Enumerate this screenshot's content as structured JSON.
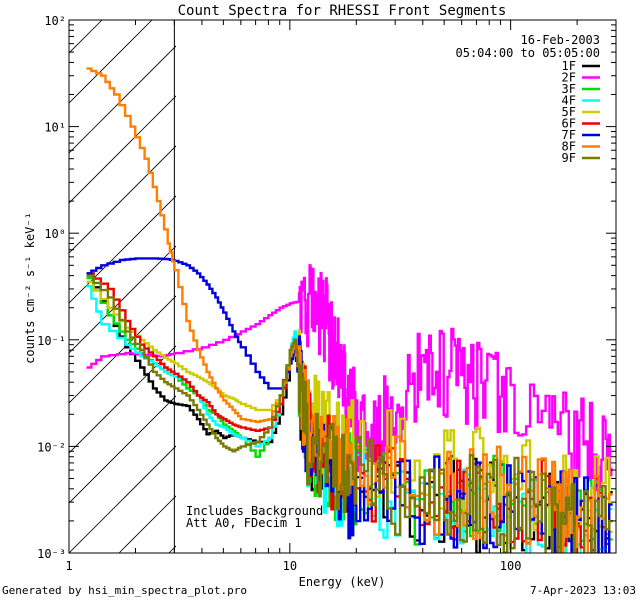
{
  "chart_data": {
    "type": "line",
    "title": "Count Spectra for RHESSI Front Segments",
    "xlabel": "Energy (keV)",
    "ylabel": "counts cm⁻² s⁻¹ keV⁻¹",
    "xscale": "log",
    "yscale": "log",
    "xlim": [
      1,
      300
    ],
    "ylim": [
      0.001,
      100
    ],
    "x_ticks": [
      {
        "value": 1,
        "label": "1"
      },
      {
        "value": 10,
        "label": "10"
      },
      {
        "value": 100,
        "label": "100"
      }
    ],
    "y_ticks": [
      {
        "value": 0.001,
        "label": "10⁻³"
      },
      {
        "value": 0.01,
        "label": "10⁻²"
      },
      {
        "value": 0.1,
        "label": "10⁻¹"
      },
      {
        "value": 1,
        "label": "10⁰"
      },
      {
        "value": 10,
        "label": "10¹"
      },
      {
        "value": 100,
        "label": "10²"
      }
    ],
    "date_label": "16-Feb-2003",
    "time_range_label": "05:04:00 to 05:05:00",
    "annotations": [
      "Includes Background",
      "Att A0, FDecim 1"
    ],
    "hatched_region_keV": [
      1,
      3
    ],
    "legend_position": "top-right",
    "series": [
      {
        "name": "1F",
        "color": "#000000",
        "points": [
          [
            1.2,
            0.42
          ],
          [
            1.5,
            0.17
          ],
          [
            1.8,
            0.085
          ],
          [
            2.1,
            0.055
          ],
          [
            2.4,
            0.035
          ],
          [
            2.7,
            0.027
          ],
          [
            3.0,
            0.025
          ],
          [
            3.4,
            0.024
          ],
          [
            3.8,
            0.018
          ],
          [
            4.2,
            0.013
          ],
          [
            4.6,
            0.014
          ],
          [
            5.0,
            0.012
          ],
          [
            5.5,
            0.013
          ],
          [
            6.0,
            0.012
          ],
          [
            7.0,
            0.011
          ],
          [
            8.0,
            0.011
          ],
          [
            9.0,
            0.02
          ],
          [
            10.0,
            0.06
          ],
          [
            10.5,
            0.09
          ],
          [
            11.0,
            0.04
          ],
          [
            12.0,
            0.012
          ],
          [
            14.0,
            0.007
          ],
          [
            17.0,
            0.005
          ],
          [
            20.0,
            0.004
          ],
          [
            30.0,
            0.003
          ],
          [
            50.0,
            0.003
          ],
          [
            70.0,
            0.0028
          ],
          [
            100.0,
            0.0025
          ],
          [
            150.0,
            0.0022
          ],
          [
            200.0,
            0.0018
          ],
          [
            290.0,
            0.0013
          ]
        ]
      },
      {
        "name": "2F",
        "color": "#ff00ff",
        "points": [
          [
            1.2,
            0.055
          ],
          [
            1.4,
            0.07
          ],
          [
            1.8,
            0.075
          ],
          [
            2.2,
            0.072
          ],
          [
            2.6,
            0.07
          ],
          [
            3.0,
            0.075
          ],
          [
            4.0,
            0.085
          ],
          [
            5.0,
            0.1
          ],
          [
            6.0,
            0.12
          ],
          [
            7.0,
            0.14
          ],
          [
            8.0,
            0.17
          ],
          [
            9.0,
            0.2
          ],
          [
            10.0,
            0.22
          ],
          [
            11.0,
            0.23
          ],
          [
            12.0,
            0.22
          ],
          [
            13.0,
            0.21
          ],
          [
            14.0,
            0.17
          ],
          [
            15.0,
            0.12
          ],
          [
            16.0,
            0.08
          ],
          [
            17.0,
            0.05
          ],
          [
            18.0,
            0.03
          ],
          [
            20.0,
            0.017
          ],
          [
            22.0,
            0.012
          ],
          [
            25.0,
            0.014
          ],
          [
            28.0,
            0.02
          ],
          [
            32.0,
            0.03
          ],
          [
            38.0,
            0.042
          ],
          [
            45.0,
            0.052
          ],
          [
            55.0,
            0.05
          ],
          [
            65.0,
            0.04
          ],
          [
            80.0,
            0.03
          ],
          [
            100.0,
            0.026
          ],
          [
            150.0,
            0.016
          ],
          [
            200.0,
            0.011
          ],
          [
            250.0,
            0.0085
          ],
          [
            290.0,
            0.006
          ]
        ]
      },
      {
        "name": "3F",
        "color": "#00dd00",
        "points": [
          [
            1.2,
            0.38
          ],
          [
            1.5,
            0.17
          ],
          [
            1.8,
            0.1
          ],
          [
            2.1,
            0.075
          ],
          [
            2.4,
            0.06
          ],
          [
            2.7,
            0.05
          ],
          [
            3.0,
            0.045
          ],
          [
            3.4,
            0.035
          ],
          [
            3.8,
            0.03
          ],
          [
            4.2,
            0.022
          ],
          [
            4.6,
            0.02
          ],
          [
            5.0,
            0.016
          ],
          [
            5.5,
            0.014
          ],
          [
            6.0,
            0.012
          ],
          [
            7.0,
            0.008
          ],
          [
            8.0,
            0.012
          ],
          [
            9.0,
            0.025
          ],
          [
            10.0,
            0.08
          ],
          [
            10.5,
            0.11
          ],
          [
            11.0,
            0.05
          ],
          [
            12.0,
            0.012
          ],
          [
            14.0,
            0.006
          ],
          [
            17.0,
            0.005
          ],
          [
            20.0,
            0.0045
          ],
          [
            30.0,
            0.0035
          ],
          [
            50.0,
            0.003
          ],
          [
            70.0,
            0.003
          ],
          [
            100.0,
            0.0028
          ],
          [
            150.0,
            0.0024
          ],
          [
            200.0,
            0.002
          ],
          [
            290.0,
            0.0015
          ]
        ]
      },
      {
        "name": "4F",
        "color": "#00ffff",
        "points": [
          [
            1.2,
            0.32
          ],
          [
            1.4,
            0.14
          ],
          [
            1.8,
            0.09
          ],
          [
            2.1,
            0.07
          ],
          [
            2.4,
            0.06
          ],
          [
            2.7,
            0.05
          ],
          [
            3.0,
            0.045
          ],
          [
            3.4,
            0.04
          ],
          [
            3.8,
            0.03
          ],
          [
            4.2,
            0.02
          ],
          [
            4.6,
            0.016
          ],
          [
            5.0,
            0.015
          ],
          [
            5.5,
            0.013
          ],
          [
            6.0,
            0.012
          ],
          [
            7.0,
            0.01
          ],
          [
            8.0,
            0.012
          ],
          [
            9.0,
            0.025
          ],
          [
            10.0,
            0.08
          ],
          [
            10.5,
            0.12
          ],
          [
            11.0,
            0.05
          ],
          [
            12.0,
            0.01
          ],
          [
            14.0,
            0.006
          ],
          [
            17.0,
            0.0045
          ],
          [
            20.0,
            0.004
          ],
          [
            30.0,
            0.0028
          ],
          [
            50.0,
            0.0025
          ],
          [
            70.0,
            0.0025
          ],
          [
            100.0,
            0.0024
          ],
          [
            150.0,
            0.002
          ],
          [
            200.0,
            0.0017
          ],
          [
            290.0,
            0.0012
          ]
        ]
      },
      {
        "name": "5F",
        "color": "#cccc00",
        "points": [
          [
            1.2,
            0.35
          ],
          [
            1.5,
            0.2
          ],
          [
            1.8,
            0.13
          ],
          [
            2.1,
            0.1
          ],
          [
            2.4,
            0.08
          ],
          [
            2.7,
            0.068
          ],
          [
            3.0,
            0.06
          ],
          [
            3.4,
            0.05
          ],
          [
            3.8,
            0.045
          ],
          [
            4.2,
            0.04
          ],
          [
            4.6,
            0.035
          ],
          [
            5.0,
            0.03
          ],
          [
            5.5,
            0.028
          ],
          [
            6.0,
            0.025
          ],
          [
            7.0,
            0.022
          ],
          [
            8.0,
            0.022
          ],
          [
            9.0,
            0.03
          ],
          [
            10.0,
            0.07
          ],
          [
            10.5,
            0.1
          ],
          [
            11.0,
            0.05
          ],
          [
            12.0,
            0.02
          ],
          [
            14.0,
            0.014
          ],
          [
            17.0,
            0.011
          ],
          [
            20.0,
            0.01
          ],
          [
            30.0,
            0.008
          ],
          [
            50.0,
            0.007
          ],
          [
            70.0,
            0.006
          ],
          [
            100.0,
            0.005
          ],
          [
            150.0,
            0.004
          ],
          [
            200.0,
            0.0035
          ],
          [
            290.0,
            0.0028
          ]
        ]
      },
      {
        "name": "6F",
        "color": "#ee0000",
        "points": [
          [
            1.2,
            0.42
          ],
          [
            1.5,
            0.3
          ],
          [
            1.8,
            0.15
          ],
          [
            2.1,
            0.09
          ],
          [
            2.4,
            0.07
          ],
          [
            2.7,
            0.055
          ],
          [
            3.0,
            0.048
          ],
          [
            3.4,
            0.04
          ],
          [
            3.8,
            0.03
          ],
          [
            4.2,
            0.026
          ],
          [
            4.6,
            0.02
          ],
          [
            5.0,
            0.018
          ],
          [
            5.5,
            0.016
          ],
          [
            6.0,
            0.015
          ],
          [
            7.0,
            0.014
          ],
          [
            8.0,
            0.015
          ],
          [
            9.0,
            0.025
          ],
          [
            10.0,
            0.07
          ],
          [
            10.5,
            0.1
          ],
          [
            11.0,
            0.05
          ],
          [
            12.0,
            0.014
          ],
          [
            14.0,
            0.008
          ],
          [
            17.0,
            0.006
          ],
          [
            20.0,
            0.005
          ],
          [
            30.0,
            0.004
          ],
          [
            50.0,
            0.0036
          ],
          [
            70.0,
            0.0034
          ],
          [
            100.0,
            0.003
          ],
          [
            150.0,
            0.0026
          ],
          [
            200.0,
            0.0022
          ],
          [
            290.0,
            0.0016
          ]
        ]
      },
      {
        "name": "7F",
        "color": "#0000dd",
        "points": [
          [
            1.2,
            0.42
          ],
          [
            1.4,
            0.5
          ],
          [
            1.7,
            0.56
          ],
          [
            2.0,
            0.58
          ],
          [
            2.4,
            0.58
          ],
          [
            2.8,
            0.57
          ],
          [
            3.0,
            0.55
          ],
          [
            3.4,
            0.5
          ],
          [
            3.8,
            0.42
          ],
          [
            4.2,
            0.33
          ],
          [
            4.6,
            0.25
          ],
          [
            5.0,
            0.18
          ],
          [
            5.5,
            0.12
          ],
          [
            6.0,
            0.085
          ],
          [
            7.0,
            0.05
          ],
          [
            8.0,
            0.035
          ],
          [
            9.0,
            0.035
          ],
          [
            10.0,
            0.06
          ],
          [
            10.5,
            0.08
          ],
          [
            11.0,
            0.04
          ],
          [
            12.0,
            0.01
          ],
          [
            14.0,
            0.006
          ],
          [
            17.0,
            0.004
          ],
          [
            20.0,
            0.0035
          ],
          [
            30.0,
            0.003
          ],
          [
            50.0,
            0.003
          ],
          [
            70.0,
            0.0028
          ],
          [
            100.0,
            0.0026
          ],
          [
            150.0,
            0.0023
          ],
          [
            200.0,
            0.0019
          ],
          [
            290.0,
            0.0015
          ]
        ]
      },
      {
        "name": "8F",
        "color": "#ff7f00",
        "points": [
          [
            1.2,
            35
          ],
          [
            1.4,
            30
          ],
          [
            1.6,
            20
          ],
          [
            1.9,
            10
          ],
          [
            2.2,
            5
          ],
          [
            2.5,
            2
          ],
          [
            2.8,
            0.8
          ],
          [
            3.0,
            0.45
          ],
          [
            3.4,
            0.15
          ],
          [
            3.8,
            0.08
          ],
          [
            4.2,
            0.05
          ],
          [
            4.6,
            0.035
          ],
          [
            5.0,
            0.027
          ],
          [
            5.5,
            0.022
          ],
          [
            6.0,
            0.018
          ],
          [
            7.0,
            0.017
          ],
          [
            8.0,
            0.018
          ],
          [
            9.0,
            0.03
          ],
          [
            10.0,
            0.07
          ],
          [
            10.5,
            0.09
          ],
          [
            11.0,
            0.045
          ],
          [
            12.0,
            0.015
          ],
          [
            14.0,
            0.009
          ],
          [
            17.0,
            0.007
          ],
          [
            20.0,
            0.006
          ],
          [
            30.0,
            0.0045
          ],
          [
            50.0,
            0.004
          ],
          [
            70.0,
            0.0038
          ],
          [
            100.0,
            0.0035
          ],
          [
            150.0,
            0.003
          ],
          [
            200.0,
            0.0025
          ],
          [
            290.0,
            0.0018
          ]
        ]
      },
      {
        "name": "9F",
        "color": "#7a7a00",
        "points": [
          [
            1.2,
            0.4
          ],
          [
            1.5,
            0.25
          ],
          [
            1.8,
            0.12
          ],
          [
            2.1,
            0.08
          ],
          [
            2.4,
            0.05
          ],
          [
            2.7,
            0.04
          ],
          [
            3.0,
            0.035
          ],
          [
            3.4,
            0.03
          ],
          [
            3.8,
            0.022
          ],
          [
            4.2,
            0.016
          ],
          [
            4.6,
            0.012
          ],
          [
            5.0,
            0.01
          ],
          [
            5.5,
            0.009
          ],
          [
            6.0,
            0.01
          ],
          [
            7.0,
            0.011
          ],
          [
            8.0,
            0.015
          ],
          [
            9.0,
            0.03
          ],
          [
            10.0,
            0.08
          ],
          [
            10.5,
            0.1
          ],
          [
            11.0,
            0.045
          ],
          [
            12.0,
            0.012
          ],
          [
            14.0,
            0.007
          ],
          [
            17.0,
            0.005
          ],
          [
            20.0,
            0.0045
          ],
          [
            30.0,
            0.0035
          ],
          [
            50.0,
            0.003
          ],
          [
            70.0,
            0.003
          ],
          [
            100.0,
            0.0028
          ],
          [
            150.0,
            0.0025
          ],
          [
            200.0,
            0.002
          ],
          [
            290.0,
            0.0015
          ]
        ]
      }
    ]
  },
  "footer": {
    "left": "Generated by hsi_min_spectra_plot.pro",
    "right": "7-Apr-2023 13:03"
  }
}
